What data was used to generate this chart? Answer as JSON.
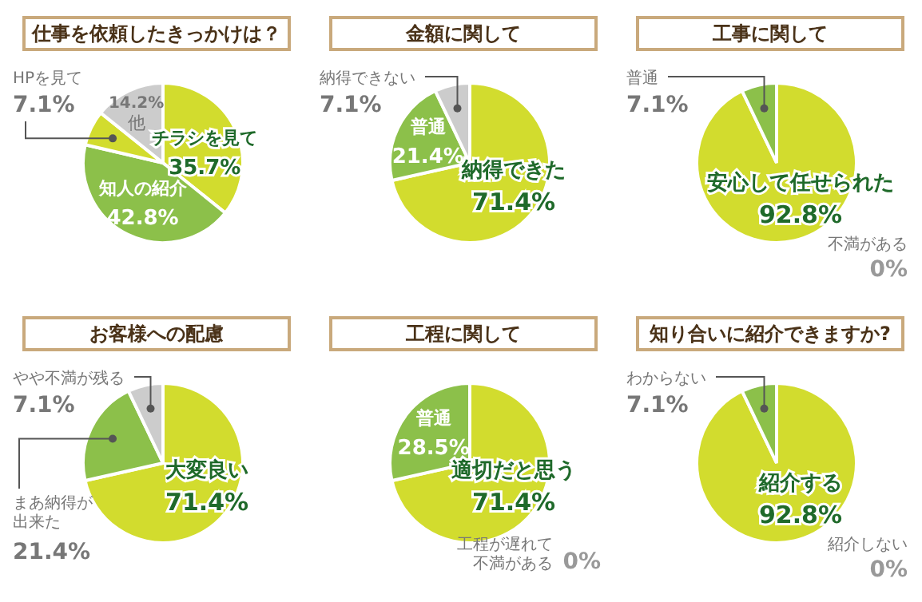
{
  "chart_data": [
    {
      "type": "pie",
      "title": "仕事を依頼したきっかけは？",
      "categories": [
        "チラシを見て",
        "知人の紹介",
        "HPを見て",
        "他"
      ],
      "values": [
        35.7,
        42.8,
        7.1,
        14.2
      ],
      "value_labels": [
        "35.7%",
        "42.8%",
        "7.1%",
        "14.2%"
      ],
      "colors": [
        "#d2dc2e",
        "#8cc04a",
        "#d2dc2e",
        "#cccccc"
      ]
    },
    {
      "type": "pie",
      "title": "金額に関して",
      "categories": [
        "納得できた",
        "普通",
        "納得できない"
      ],
      "values": [
        71.4,
        21.4,
        7.1
      ],
      "value_labels": [
        "71.4%",
        "21.4%",
        "7.1%"
      ],
      "colors": [
        "#d2dc2e",
        "#8cc04a",
        "#cccccc"
      ]
    },
    {
      "type": "pie",
      "title": "工事に関して",
      "categories": [
        "安心して任せられた",
        "不満がある",
        "普通"
      ],
      "values": [
        92.8,
        0,
        7.1
      ],
      "value_labels": [
        "92.8%",
        "0%",
        "7.1%"
      ],
      "colors": [
        "#d2dc2e",
        "#cccccc",
        "#8cc04a"
      ]
    },
    {
      "type": "pie",
      "title": "お客様への配慮",
      "categories": [
        "大変良い",
        "まあ納得が出来た",
        "やや不満が残る"
      ],
      "values": [
        71.4,
        21.4,
        7.1
      ],
      "value_labels": [
        "71.4%",
        "21.4%",
        "7.1%"
      ],
      "colors": [
        "#d2dc2e",
        "#8cc04a",
        "#cccccc"
      ]
    },
    {
      "type": "pie",
      "title": "工程に関して",
      "categories": [
        "適切だと思う",
        "工程が遅れて不満がある",
        "普通"
      ],
      "values": [
        71.4,
        0,
        28.5
      ],
      "value_labels": [
        "71.4%",
        "0%",
        "28.5%"
      ],
      "colors": [
        "#d2dc2e",
        "#cccccc",
        "#8cc04a"
      ]
    },
    {
      "type": "pie",
      "title": "知り合いに紹介できますか?",
      "categories": [
        "紹介する",
        "紹介しない",
        "わからない"
      ],
      "values": [
        92.8,
        0,
        7.1
      ],
      "value_labels": [
        "92.8%",
        "0%",
        "7.1%"
      ],
      "colors": [
        "#d2dc2e",
        "#cccccc",
        "#8cc04a"
      ]
    }
  ]
}
